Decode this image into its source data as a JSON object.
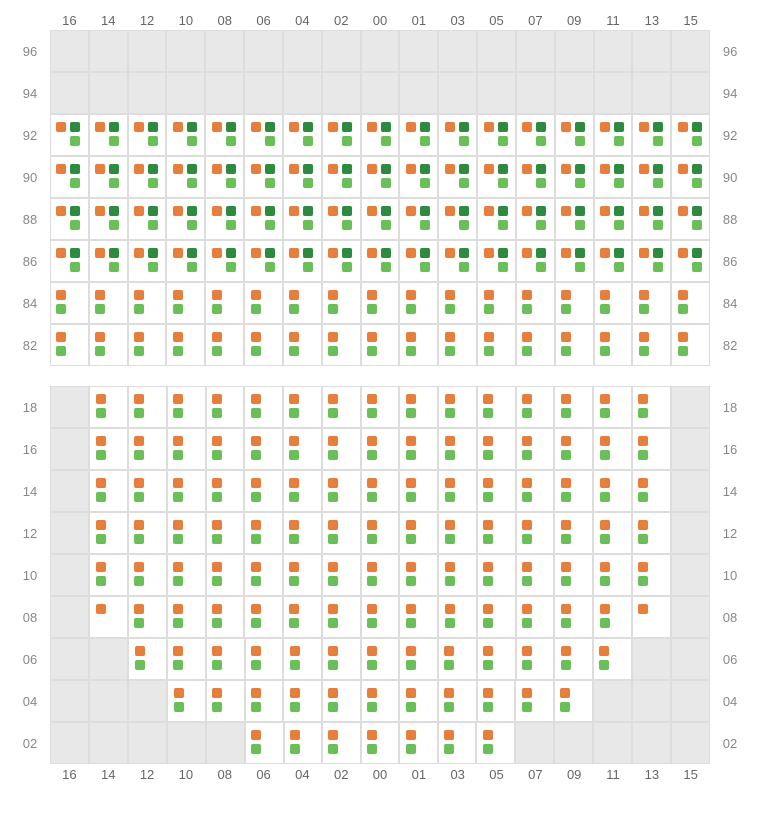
{
  "colors": {
    "orange": "#e67e3c",
    "darkgreen": "#2d8a3e",
    "green": "#6bbf59",
    "empty_bg": "#e8e8e8",
    "active_bg": "#ffffff",
    "border": "#dddddd",
    "text": "#888888"
  },
  "columns": [
    "16",
    "14",
    "12",
    "10",
    "08",
    "06",
    "04",
    "02",
    "00",
    "01",
    "03",
    "05",
    "07",
    "09",
    "11",
    "13",
    "15"
  ],
  "sections": [
    {
      "name": "top",
      "rows": [
        {
          "label": "96",
          "cells": [
            "E",
            "E",
            "E",
            "E",
            "E",
            "E",
            "E",
            "E",
            "E",
            "E",
            "E",
            "E",
            "E",
            "E",
            "E",
            "E",
            "E"
          ]
        },
        {
          "label": "94",
          "cells": [
            "E",
            "E",
            "E",
            "E",
            "E",
            "E",
            "E",
            "E",
            "E",
            "E",
            "E",
            "E",
            "E",
            "E",
            "E",
            "E",
            "E"
          ]
        },
        {
          "label": "92",
          "cells": [
            "ODG",
            "ODG",
            "ODG",
            "ODG",
            "ODG",
            "ODG",
            "ODG",
            "ODG",
            "ODG",
            "ODG",
            "ODG",
            "ODG",
            "ODG",
            "ODG",
            "ODG",
            "ODG",
            "ODG"
          ]
        },
        {
          "label": "90",
          "cells": [
            "ODG",
            "ODG",
            "ODG",
            "ODG",
            "ODG",
            "ODG",
            "ODG",
            "ODG",
            "ODG",
            "ODG",
            "ODG",
            "ODG",
            "ODG",
            "ODG",
            "ODG",
            "ODG",
            "ODG"
          ]
        },
        {
          "label": "88",
          "cells": [
            "ODG",
            "ODG",
            "ODG",
            "ODG",
            "ODG",
            "ODG",
            "ODG",
            "ODG",
            "ODG",
            "ODG",
            "ODG",
            "ODG",
            "ODG",
            "ODG",
            "ODG",
            "ODG",
            "ODG"
          ]
        },
        {
          "label": "86",
          "cells": [
            "ODG",
            "ODG",
            "ODG",
            "ODG",
            "ODG",
            "ODG",
            "ODG",
            "ODG",
            "ODG",
            "ODG",
            "ODG",
            "ODG",
            "ODG",
            "ODG",
            "ODG",
            "ODG",
            "ODG"
          ]
        },
        {
          "label": "84",
          "cells": [
            "OG",
            "OG",
            "OG",
            "OG",
            "OG",
            "OG",
            "OG",
            "OG",
            "OG",
            "OG",
            "OG",
            "OG",
            "OG",
            "OG",
            "OG",
            "OG",
            "OG"
          ]
        },
        {
          "label": "82",
          "cells": [
            "OG",
            "OG",
            "OG",
            "OG",
            "OG",
            "OG",
            "OG",
            "OG",
            "OG",
            "OG",
            "OG",
            "OG",
            "OG",
            "OG",
            "OG",
            "OG",
            "OG"
          ]
        }
      ]
    },
    {
      "name": "bottom",
      "rows": [
        {
          "label": "18",
          "cells": [
            "E",
            "OG",
            "OG",
            "OG",
            "OG",
            "OG",
            "OG",
            "OG",
            "OG",
            "OG",
            "OG",
            "OG",
            "OG",
            "OG",
            "OG",
            "OG",
            "E"
          ]
        },
        {
          "label": "16",
          "cells": [
            "E",
            "OG",
            "OG",
            "OG",
            "OG",
            "OG",
            "OG",
            "OG",
            "OG",
            "OG",
            "OG",
            "OG",
            "OG",
            "OG",
            "OG",
            "OG",
            "E"
          ]
        },
        {
          "label": "14",
          "cells": [
            "E",
            "OG",
            "OG",
            "OG",
            "OG",
            "OG",
            "OG",
            "OG",
            "OG",
            "OG",
            "OG",
            "OG",
            "OG",
            "OG",
            "OG",
            "OG",
            "E"
          ]
        },
        {
          "label": "12",
          "cells": [
            "E",
            "OG",
            "OG",
            "OG",
            "OG",
            "OG",
            "OG",
            "OG",
            "OG",
            "OG",
            "OG",
            "OG",
            "OG",
            "OG",
            "OG",
            "OG",
            "E"
          ]
        },
        {
          "label": "10",
          "cells": [
            "E",
            "OG",
            "OG",
            "OG",
            "OG",
            "OG",
            "OG",
            "OG",
            "OG",
            "OG",
            "OG",
            "OG",
            "OG",
            "OG",
            "OG",
            "OG",
            "E"
          ]
        },
        {
          "label": "08",
          "cells": [
            "E",
            "O",
            "OG",
            "OG",
            "OG",
            "OG",
            "OG",
            "OG",
            "OG",
            "OG",
            "OG",
            "OG",
            "OG",
            "OG",
            "OG",
            "O",
            "E"
          ]
        },
        {
          "label": "06",
          "cells": [
            "E",
            "E",
            "OG",
            "OG",
            "OG",
            "OG",
            "OG",
            "OG",
            "OG",
            "OG",
            "OG",
            "OG",
            "OG",
            "OG",
            "OG",
            "E",
            "E"
          ]
        },
        {
          "label": "04",
          "cells": [
            "E",
            "E",
            "E",
            "OG",
            "OG",
            "OG",
            "OG",
            "OG",
            "OG",
            "OG",
            "OG",
            "OG",
            "OG",
            "OG",
            "E",
            "E",
            "E"
          ]
        },
        {
          "label": "02",
          "cells": [
            "E",
            "E",
            "E",
            "E",
            "E",
            "OG",
            "OG",
            "OG",
            "OG",
            "OG",
            "OG",
            "OG",
            "E",
            "E",
            "E",
            "E",
            "E"
          ]
        }
      ]
    }
  ]
}
